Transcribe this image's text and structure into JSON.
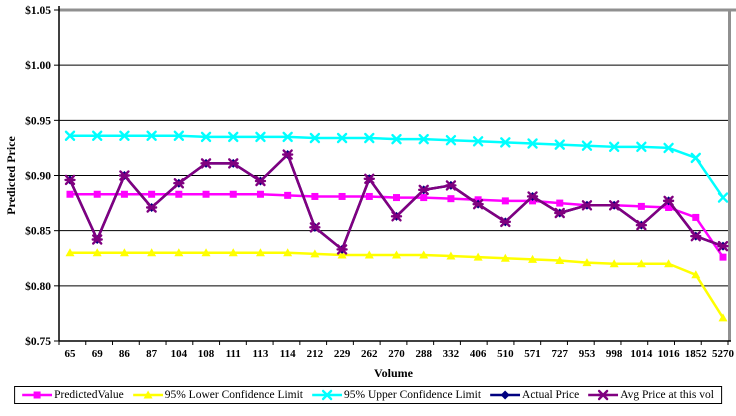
{
  "chart_data": {
    "type": "line",
    "title": "",
    "xlabel": "Volume",
    "ylabel": "Predicted Price",
    "categories": [
      65,
      69,
      86,
      87,
      104,
      108,
      111,
      113,
      114,
      212,
      229,
      262,
      270,
      288,
      332,
      406,
      510,
      571,
      727,
      953,
      998,
      1014,
      1016,
      1852,
      5270
    ],
    "ylim": [
      0.75,
      1.05
    ],
    "ytick_step": 0.05,
    "ytick_labels_top_to_bottom": [
      "$1.05",
      "$1.00",
      "$0.95",
      "$0.90",
      "$0.85",
      "$0.80",
      "$0.75"
    ],
    "grid": "horizontal",
    "legend_position": "bottom",
    "series": [
      {
        "name": "PredictedValue",
        "color": "#FF00FF",
        "marker": "square",
        "values": [
          0.883,
          0.883,
          0.883,
          0.883,
          0.883,
          0.883,
          0.883,
          0.883,
          0.882,
          0.881,
          0.881,
          0.881,
          0.88,
          0.88,
          0.879,
          0.878,
          0.877,
          0.877,
          0.875,
          0.873,
          0.873,
          0.872,
          0.871,
          0.862,
          0.826
        ]
      },
      {
        "name": "95% Lower Confidence Limit",
        "color": "#FFFF00",
        "marker": "triangle",
        "values": [
          0.83,
          0.83,
          0.83,
          0.83,
          0.83,
          0.83,
          0.83,
          0.83,
          0.83,
          0.829,
          0.828,
          0.828,
          0.828,
          0.828,
          0.827,
          0.826,
          0.825,
          0.824,
          0.823,
          0.821,
          0.82,
          0.82,
          0.82,
          0.81,
          0.771
        ]
      },
      {
        "name": "95% Upper Confidence Limit",
        "color": "#00FFFF",
        "marker": "x",
        "values": [
          0.936,
          0.936,
          0.936,
          0.936,
          0.936,
          0.935,
          0.935,
          0.935,
          0.935,
          0.934,
          0.934,
          0.934,
          0.933,
          0.933,
          0.932,
          0.931,
          0.93,
          0.929,
          0.928,
          0.927,
          0.926,
          0.926,
          0.925,
          0.916,
          0.88
        ]
      },
      {
        "name": "Actual Price",
        "color": "#000080",
        "marker": "diamond",
        "values": [
          0.896,
          0.842,
          0.9,
          0.871,
          0.893,
          0.911,
          0.911,
          0.895,
          0.919,
          0.853,
          0.833,
          0.897,
          0.863,
          0.887,
          0.891,
          0.874,
          0.858,
          0.881,
          0.866,
          0.873,
          0.873,
          0.855,
          0.877,
          0.845,
          0.836
        ]
      },
      {
        "name": "Avg Price at this vol",
        "color": "#800080",
        "marker": "star",
        "values": [
          0.896,
          0.842,
          0.9,
          0.871,
          0.893,
          0.911,
          0.911,
          0.895,
          0.919,
          0.853,
          0.833,
          0.897,
          0.863,
          0.887,
          0.891,
          0.874,
          0.858,
          0.881,
          0.866,
          0.873,
          0.873,
          0.855,
          0.877,
          0.845,
          0.836
        ]
      }
    ]
  },
  "frame": {
    "background": "#FFFFFF",
    "plot_shadow_border_color": "#909090",
    "axis_color": "#000000",
    "gridline_color": "#000000"
  }
}
